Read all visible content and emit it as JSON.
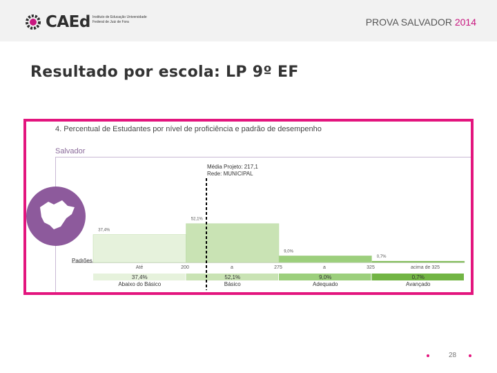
{
  "header": {
    "logo_word": "CAEd",
    "logo_sub": "Instituto de Educação Universidade Federal de Juiz de Fora",
    "prova": "PROVA SALVADOR",
    "year": "2014"
  },
  "page_title": "Resultado por escola: LP 9º EF",
  "chart_data": {
    "type": "bar",
    "title": "4. Percentual de Estudantes por nível de proficiência e padrão de desempenho",
    "region": "Salvador",
    "mean_label_line1": "Média Projeto: 217,1",
    "mean_label_line2": "Rede: MUNICIPAL",
    "row_label": "Padrões",
    "categories": [
      "Abaixo do Básico",
      "Básico",
      "Adequado",
      "Avançado"
    ],
    "values": [
      37.4,
      52.1,
      9.0,
      0.7
    ],
    "bar_labels": [
      "37,4%",
      "52,1%",
      "9,0%",
      "0,7%"
    ],
    "value_labels": [
      "37,4%",
      "52,1%",
      "9,0%",
      "0,7%"
    ],
    "range_labels": [
      "Até",
      "200",
      "a",
      "275",
      "a",
      "325",
      "acima de 325"
    ],
    "ylim": [
      0,
      100
    ],
    "colors": [
      "#e6f2dc",
      "#c9e3b4",
      "#9ccf7c",
      "#72b544"
    ]
  },
  "footer": {
    "page": "28"
  }
}
